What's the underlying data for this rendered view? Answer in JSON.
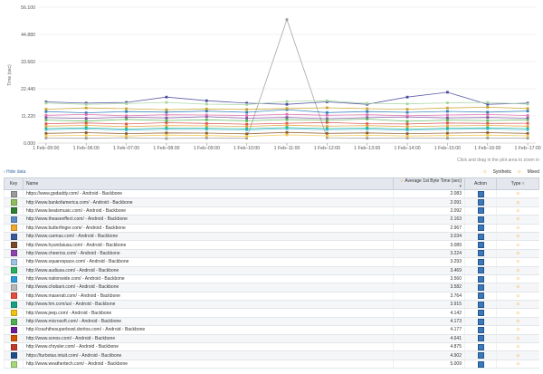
{
  "chart": {
    "ylabel": "Time (sec)",
    "yticks": [
      "0.000",
      "11.220",
      "22.440",
      "33.660",
      "44.880",
      "56.100"
    ],
    "xticks": [
      "1 Feb–05:00",
      "1 Feb–06:00",
      "1 Feb–07:00",
      "1 Feb–08:00",
      "1 Feb–09:00",
      "1 Feb–10:00",
      "1 Feb–11:00",
      "1 Feb–12:00",
      "1 Feb–13:00",
      "1 Feb–14:00",
      "1 Feb–15:00",
      "1 Feb–16:00",
      "1 Feb–17:00"
    ],
    "hint": "Click and drag in the plot area to zoom in"
  },
  "chart_data": {
    "type": "line",
    "x": [
      "1 Feb–05:00",
      "1 Feb–06:00",
      "1 Feb–07:00",
      "1 Feb–08:00",
      "1 Feb–09:00",
      "1 Feb–10:00",
      "1 Feb–11:00",
      "1 Feb–12:00",
      "1 Feb–13:00",
      "1 Feb–14:00",
      "1 Feb–15:00",
      "1 Feb–16:00",
      "1 Feb–17:00"
    ],
    "ylabel": "Time (sec)",
    "ylim": [
      0,
      56.1
    ],
    "grid": true,
    "series": [
      {
        "color": "#9b9b9b",
        "values": [
          2.1,
          2.0,
          2.2,
          1.9,
          2.1,
          2.0,
          51.0,
          2.2,
          2.0,
          2.1,
          2.0,
          2.1,
          2.0
        ]
      },
      {
        "color": "#4a4a9c",
        "values": [
          17.0,
          16.5,
          16.8,
          19.0,
          17.5,
          16.5,
          16.0,
          17.0,
          16.0,
          19.0,
          21.0,
          16.0,
          16.5
        ]
      },
      {
        "color": "#2f7db8",
        "values": [
          13.0,
          12.5,
          13.0,
          12.8,
          13.2,
          12.7,
          13.8,
          12.6,
          13.0,
          12.7,
          13.1,
          12.8,
          13.2
        ]
      },
      {
        "color": "#c9a227",
        "values": [
          14.0,
          14.5,
          14.2,
          13.8,
          14.1,
          13.9,
          14.3,
          14.6,
          14.2,
          14.0,
          14.5,
          14.8,
          14.3
        ]
      },
      {
        "color": "#a6d6a0",
        "values": [
          16.5,
          16.0,
          16.3,
          16.8,
          16.1,
          15.9,
          17.2,
          17.5,
          16.4,
          16.2,
          16.6,
          16.8,
          16.1
        ]
      },
      {
        "color": "#7b4f9e",
        "values": [
          10.5,
          10.2,
          10.7,
          10.4,
          10.9,
          10.3,
          10.6,
          10.1,
          10.5,
          10.8,
          10.4,
          10.6,
          10.3
        ]
      },
      {
        "color": "#d9534f",
        "values": [
          8.0,
          8.3,
          7.9,
          8.4,
          8.1,
          7.8,
          8.2,
          8.5,
          8.0,
          7.9,
          8.3,
          8.1,
          8.2
        ]
      },
      {
        "color": "#5cb85c",
        "values": [
          9.5,
          9.1,
          9.8,
          9.3,
          9.6,
          9.2,
          9.7,
          9.4,
          9.9,
          9.0,
          9.5,
          9.3,
          9.6
        ]
      },
      {
        "color": "#e8a33d",
        "values": [
          7.0,
          7.3,
          6.8,
          7.2,
          7.1,
          6.9,
          7.4,
          7.0,
          7.2,
          6.8,
          7.1,
          7.3,
          7.0
        ]
      },
      {
        "color": "#6ec1e4",
        "values": [
          5.5,
          5.8,
          5.3,
          5.7,
          5.6,
          5.4,
          5.9,
          5.5,
          5.7,
          5.3,
          5.6,
          5.8,
          5.4
        ]
      },
      {
        "color": "#8b572a",
        "values": [
          4.0,
          4.3,
          3.9,
          4.2,
          4.1,
          3.8,
          4.4,
          4.0,
          4.2,
          3.9,
          4.1,
          4.3,
          4.0
        ]
      },
      {
        "color": "#f2c94c",
        "values": [
          3.0,
          3.2,
          2.9,
          3.3,
          3.1,
          2.8,
          3.4,
          3.0,
          3.2,
          2.9,
          3.1,
          3.3,
          3.0
        ]
      },
      {
        "color": "#1abc9c",
        "values": [
          6.0,
          6.3,
          5.8,
          6.2,
          6.1,
          5.9,
          6.4,
          6.0,
          6.2,
          5.8,
          6.1,
          6.3,
          6.0
        ]
      },
      {
        "color": "#e06eb0",
        "values": [
          11.5,
          11.8,
          11.3,
          11.7,
          11.6,
          11.4,
          11.9,
          11.5,
          11.7,
          11.3,
          11.6,
          11.8,
          11.4
        ]
      }
    ]
  },
  "hide_data_label": "‹ Hide data",
  "legend": {
    "synthetic": "Synthetic",
    "mixed": "Mixed"
  },
  "table": {
    "headers": {
      "key": "Key",
      "name": "Name",
      "avg": "Average 1st Byte Time (sec)",
      "action": "Action",
      "type": "Type"
    },
    "rows": [
      {
        "color": "#9b9b9b",
        "name": "https://www.godaddy.com/ - Android - Backbone",
        "avg": "2.083"
      },
      {
        "color": "#8fbf5a",
        "name": "http://www.bankofamerica.com/ - Android - Backbone",
        "avg": "2.091"
      },
      {
        "color": "#2e7d32",
        "name": "http://www.beatsmusic.com/ - Android - Backbone",
        "avg": "2.092"
      },
      {
        "color": "#5c8ac7",
        "name": "http://www.theaseeffect.com/ - Android - Backbone",
        "avg": "2.163"
      },
      {
        "color": "#f0a830",
        "name": "http://www.butterfinger.com/ - Android - Backbone",
        "avg": "2.967"
      },
      {
        "color": "#3b5a9a",
        "name": "http://www.carmax.com/ - Android - Backbone",
        "avg": "3.034"
      },
      {
        "color": "#7a4a2b",
        "name": "http://www.hyundaiusa.com/ - Android - Backbone",
        "avg": "3.089"
      },
      {
        "color": "#8e44ad",
        "name": "http://www.cheerios.com/ - Android - Backbone",
        "avg": "3.224"
      },
      {
        "color": "#9cc3e6",
        "name": "http://www.squarespace.com/ - Android - Backbone",
        "avg": "3.293"
      },
      {
        "color": "#27ae60",
        "name": "http://www.audiusa.com/ - Android - Backbone",
        "avg": "3.469"
      },
      {
        "color": "#2d9cdb",
        "name": "http://www.nationwide.com/ - Android - Backbone",
        "avg": "3.560"
      },
      {
        "color": "#b8b8b8",
        "name": "http://www.chobani.com/ - Android - Backbone",
        "avg": "3.582"
      },
      {
        "color": "#e74c3c",
        "name": "http://www.maserati.com/ - Android - Backbone",
        "avg": "3.764"
      },
      {
        "color": "#16a085",
        "name": "http://www.hm.com/us/ - Android - Backbone",
        "avg": "3.915"
      },
      {
        "color": "#f1c40f",
        "name": "http://www.jeep.com/ - Android - Backbone",
        "avg": "4.142"
      },
      {
        "color": "#4caf50",
        "name": "http://www.microsoft.com/ - Android - Backbone",
        "avg": "4.173"
      },
      {
        "color": "#6a1b9a",
        "name": "http://crashthesuperbowl.doritos.com/ - Android - Backbone",
        "avg": "4.177"
      },
      {
        "color": "#d35400",
        "name": "http://www.sonos.com/ - Android - Backbone",
        "avg": "4.641"
      },
      {
        "color": "#c0392b",
        "name": "http://www.chrysler.com/ - Android - Backbone",
        "avg": "4.875"
      },
      {
        "color": "#1f4e8c",
        "name": "https://turbotax.intuit.com/ - Android - Backbone",
        "avg": "4.902"
      },
      {
        "color": "#a3d977",
        "name": "http://www.weathertech.com/ - Android - Backbone",
        "avg": "5.009"
      }
    ]
  }
}
